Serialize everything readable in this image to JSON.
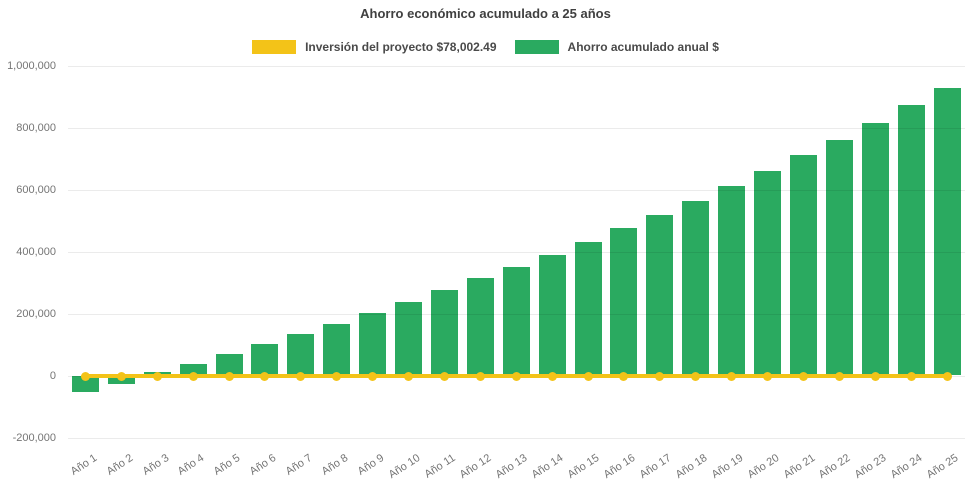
{
  "chart_data": {
    "type": "bar",
    "title": "Ahorro económico acumulado a 25 años",
    "categories": [
      "Año 1",
      "Año 2",
      "Año 3",
      "Año 4",
      "Año 5",
      "Año 6",
      "Año 7",
      "Año 8",
      "Año 9",
      "Año 10",
      "Año 11",
      "Año 12",
      "Año 13",
      "Año 14",
      "Año 15",
      "Año 16",
      "Año 17",
      "Año 18",
      "Año 19",
      "Año 20",
      "Año 21",
      "Año 22",
      "Año 23",
      "Año 24",
      "Año 25"
    ],
    "series": [
      {
        "name": "Inversión del proyecto $78,002.49",
        "type": "line",
        "color": "#F3C318",
        "plotted_value": 0,
        "marker": "circle"
      },
      {
        "name": "Ahorro acumulado anual $",
        "type": "bar",
        "color": "#2AAA60",
        "values": [
          -54000,
          -28000,
          10000,
          38000,
          70000,
          103000,
          134000,
          166000,
          201000,
          238000,
          277000,
          316000,
          351000,
          390000,
          432000,
          475000,
          519000,
          564000,
          611000,
          660000,
          710000,
          761000,
          816000,
          872000,
          927000
        ]
      }
    ],
    "xlabel": "",
    "ylabel": "",
    "ylim": [
      -200000,
      1000000
    ],
    "grid": true,
    "legend_position": "top",
    "y_ticks": [
      {
        "value": 1000000,
        "label": "1,000,000"
      },
      {
        "value": 800000,
        "label": "800,000"
      },
      {
        "value": 600000,
        "label": "600,000"
      },
      {
        "value": 400000,
        "label": "400,000"
      },
      {
        "value": 200000,
        "label": "200,000"
      },
      {
        "value": 0,
        "label": "0"
      },
      {
        "value": -200000,
        "label": "-200,000"
      }
    ],
    "text_colors": {
      "title": "#404040",
      "legend": "#4a4a4a",
      "axis": "#757575"
    },
    "grid_color": "rgba(0,0,0,0.08)"
  }
}
